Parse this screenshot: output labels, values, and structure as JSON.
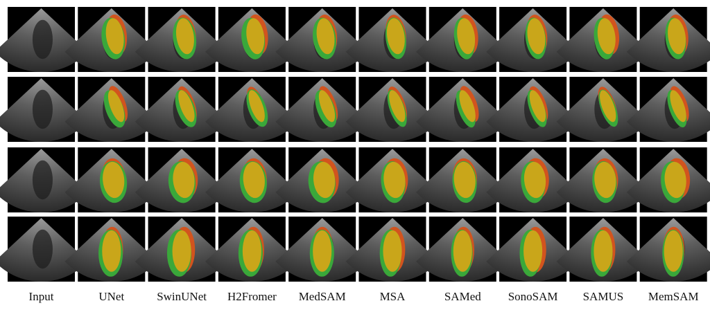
{
  "figure": {
    "columns": [
      "Input",
      "UNet",
      "SwinUNet",
      "H2Fromer",
      "MedSAM",
      "MSA",
      "SAMed",
      "SonoSAM",
      "SAMUS",
      "MemSAM"
    ]
  }
}
